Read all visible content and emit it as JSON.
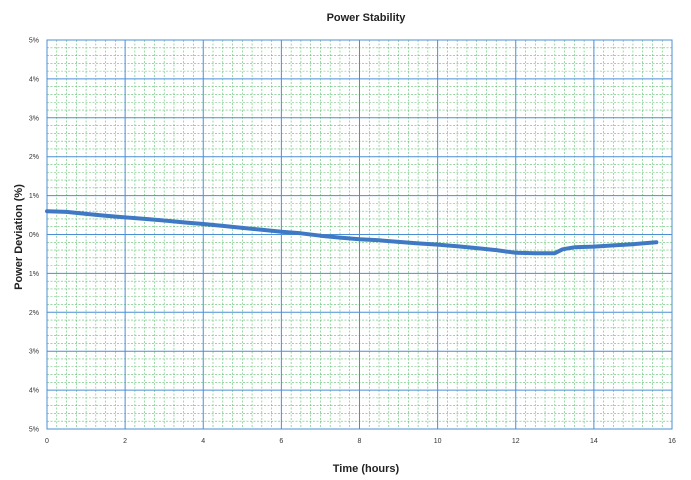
{
  "chart_data": {
    "type": "line",
    "title": "Power Stability",
    "xlabel": "Time (hours)",
    "ylabel": "Power Deviation (%)",
    "xlim": [
      0,
      16
    ],
    "ylim": [
      -5,
      5
    ],
    "x_ticks": [
      0,
      2,
      4,
      6,
      8,
      10,
      12,
      14,
      16
    ],
    "x_tick_labels": [
      "0",
      "2",
      "4",
      "6",
      "8",
      "10",
      "12",
      "14",
      "16"
    ],
    "y_ticks": [
      5,
      4,
      3,
      2,
      1,
      0,
      -1,
      -2,
      -3,
      -4,
      -5
    ],
    "y_tick_labels": [
      "5%",
      "4%",
      "3%",
      "2%",
      "1%",
      "0%",
      "1%",
      "2%",
      "3%",
      "4%",
      "5%"
    ],
    "grid": true,
    "series": [
      {
        "color": "#3f78c4",
        "x": [
          0,
          0.5,
          1,
          1.5,
          2,
          2.5,
          3,
          3.5,
          4,
          4.5,
          5,
          5.5,
          6,
          6.5,
          7,
          7.5,
          8,
          8.5,
          9,
          9.5,
          10,
          10.5,
          11,
          11.5,
          12,
          12.5,
          13,
          13.2,
          13.5,
          14,
          14.5,
          15,
          15.6
        ],
        "y": [
          0.6,
          0.58,
          0.53,
          0.48,
          0.44,
          0.4,
          0.36,
          0.31,
          0.27,
          0.22,
          0.17,
          0.12,
          0.07,
          0.03,
          -0.03,
          -0.08,
          -0.12,
          -0.15,
          -0.19,
          -0.23,
          -0.26,
          -0.3,
          -0.35,
          -0.4,
          -0.47,
          -0.48,
          -0.48,
          -0.38,
          -0.33,
          -0.31,
          -0.28,
          -0.25,
          -0.2
        ]
      }
    ]
  }
}
